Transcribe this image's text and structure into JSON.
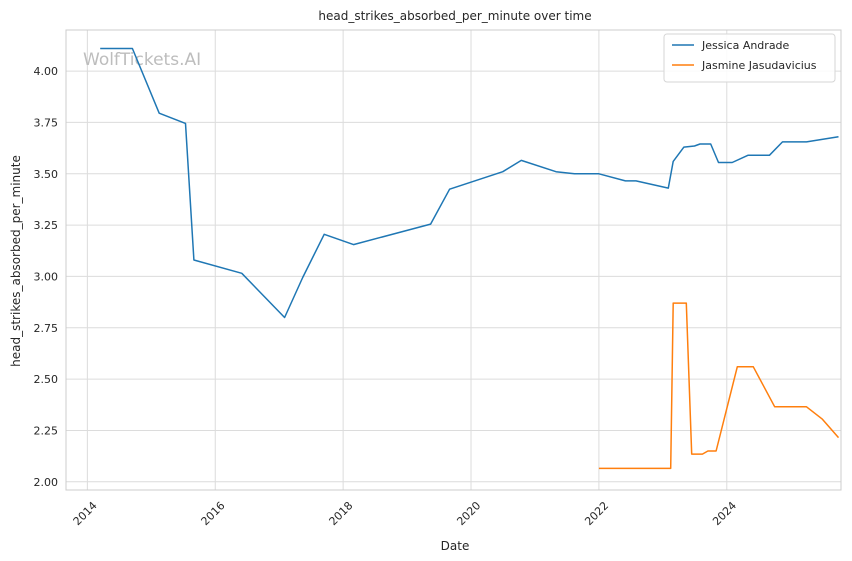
{
  "watermark": "WolfTickets.AI",
  "chart_data": {
    "type": "line",
    "title": "head_strikes_absorbed_per_minute over time",
    "xlabel": "Date",
    "ylabel": "head_strikes_absorbed_per_minute",
    "x_ticks": [
      "2014",
      "2016",
      "2018",
      "2020",
      "2022",
      "2024"
    ],
    "y_ticks": [
      "2.00",
      "2.25",
      "2.50",
      "2.75",
      "3.00",
      "3.25",
      "3.50",
      "3.75",
      "4.00"
    ],
    "xlim": [
      "2013-09-01",
      "2025-10-15"
    ],
    "ylim": [
      1.96,
      4.2
    ],
    "grid": true,
    "legend_position": "top-right",
    "series": [
      {
        "name": "Jessica Andrade",
        "color": "#1f77b4",
        "points": [
          [
            "2014-03-15",
            4.11
          ],
          [
            "2014-09-15",
            4.11
          ],
          [
            "2015-02-15",
            3.795
          ],
          [
            "2015-07-15",
            3.745
          ],
          [
            "2015-09-01",
            3.08
          ],
          [
            "2016-06-01",
            3.015
          ],
          [
            "2017-02-01",
            2.8
          ],
          [
            "2017-05-15",
            2.995
          ],
          [
            "2017-09-15",
            3.205
          ],
          [
            "2018-03-01",
            3.155
          ],
          [
            "2019-05-15",
            3.255
          ],
          [
            "2019-09-01",
            3.425
          ],
          [
            "2020-07-01",
            3.51
          ],
          [
            "2020-10-15",
            3.565
          ],
          [
            "2021-05-01",
            3.51
          ],
          [
            "2021-08-15",
            3.5
          ],
          [
            "2022-01-01",
            3.5
          ],
          [
            "2022-06-01",
            3.465
          ],
          [
            "2022-08-01",
            3.465
          ],
          [
            "2023-02-01",
            3.43
          ],
          [
            "2023-03-01",
            3.56
          ],
          [
            "2023-05-01",
            3.63
          ],
          [
            "2023-07-01",
            3.635
          ],
          [
            "2023-08-01",
            3.645
          ],
          [
            "2023-10-01",
            3.645
          ],
          [
            "2023-11-15",
            3.555
          ],
          [
            "2024-02-01",
            3.555
          ],
          [
            "2024-05-01",
            3.59
          ],
          [
            "2024-09-01",
            3.59
          ],
          [
            "2024-11-15",
            3.655
          ],
          [
            "2025-04-01",
            3.655
          ],
          [
            "2025-10-01",
            3.68
          ]
        ]
      },
      {
        "name": "Jasmine Jasudavicius",
        "color": "#ff7f0e",
        "points": [
          [
            "2022-01-01",
            2.065
          ],
          [
            "2023-02-15",
            2.065
          ],
          [
            "2023-03-01",
            2.87
          ],
          [
            "2023-05-15",
            2.87
          ],
          [
            "2023-06-15",
            2.135
          ],
          [
            "2023-08-15",
            2.135
          ],
          [
            "2023-09-15",
            2.15
          ],
          [
            "2023-11-01",
            2.15
          ],
          [
            "2024-03-01",
            2.56
          ],
          [
            "2024-06-01",
            2.56
          ],
          [
            "2024-10-01",
            2.365
          ],
          [
            "2025-04-01",
            2.365
          ],
          [
            "2025-07-01",
            2.305
          ],
          [
            "2025-10-01",
            2.215
          ]
        ]
      }
    ]
  }
}
